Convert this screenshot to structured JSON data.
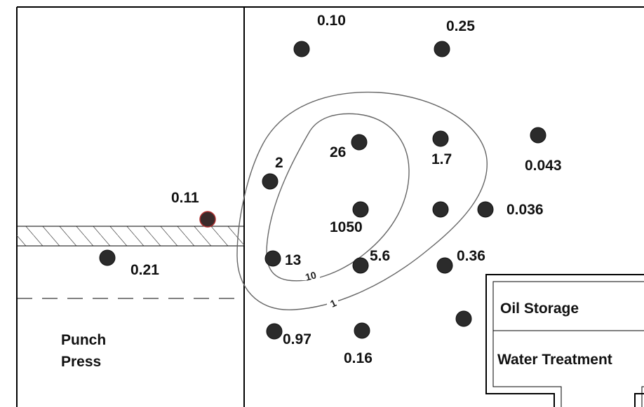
{
  "areas": {
    "punch_press_line1": "Punch",
    "punch_press_line2": "Press",
    "oil_storage": "Oil Storage",
    "water_treatment": "Water Treatment"
  },
  "contours": [
    {
      "label": "10"
    },
    {
      "label": "1"
    }
  ],
  "wells": [
    {
      "label": "0.10"
    },
    {
      "label": "0.25"
    },
    {
      "label": "26"
    },
    {
      "label": "1.7"
    },
    {
      "label": "0.043"
    },
    {
      "label": "2"
    },
    {
      "label": "0.11"
    },
    {
      "label": "1050"
    },
    {
      "label": "0.036"
    },
    {
      "label": "0.21"
    },
    {
      "label": "13"
    },
    {
      "label": "5.6"
    },
    {
      "label": "0.36"
    },
    {
      "label": ""
    },
    {
      "label": "0.97"
    },
    {
      "label": "0.16"
    },
    {
      "label": ""
    }
  ],
  "colors": {
    "well_fill": "#2b2b2b",
    "highlight_outline": "#b03030",
    "line": "#000000"
  }
}
